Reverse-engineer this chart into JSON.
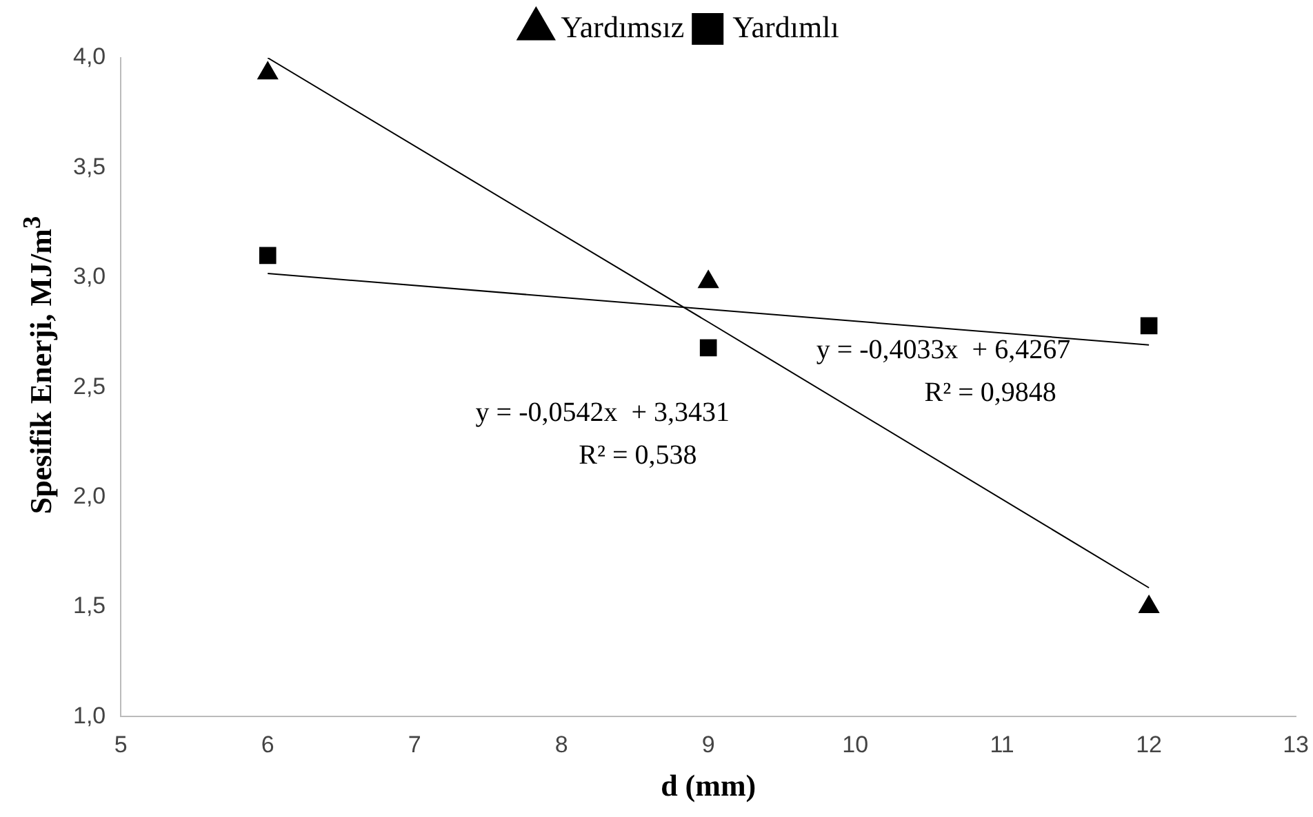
{
  "chart_data": {
    "type": "scatter",
    "xlabel": "d (mm)",
    "ylabel": "Spesifik Enerji,  MJ/m$^{3}$",
    "x": [
      6,
      9,
      12
    ],
    "series": [
      {
        "name": "Yardımsız",
        "color": "#000000",
        "values": [
          3.93,
          2.98,
          1.5
        ],
        "marker": "triangle"
      },
      {
        "name": "Yardımlı",
        "color": "#000000",
        "values": [
          3.1,
          2.68,
          2.78
        ],
        "marker": "square"
      },
      {
        "type": "line",
        "color": "#000000",
        "values": [
          4.0,
          2.797,
          1.587
        ],
        "marker": "none"
      },
      {
        "type": "line",
        "color": "#000000",
        "values": [
          3.018,
          2.855,
          2.693
        ],
        "marker": "none"
      }
    ],
    "annotations": [
      "y = -0,4033x  + 6,4267",
      "R² = 0,9848",
      "y = -0,0542x  + 3,3431",
      "R² = 0,538"
    ],
    "xlim": [
      5,
      13
    ],
    "xticks": [
      5,
      6,
      7,
      8,
      9,
      10,
      11,
      12,
      13
    ],
    "ylim": [
      1,
      4
    ],
    "yticks": [
      {
        "value": 1,
        "label": "1,0"
      },
      {
        "value": 1.5,
        "label": "1,5"
      },
      {
        "value": 2,
        "label": "2,0"
      },
      {
        "value": 2.5,
        "label": "2,5"
      },
      {
        "value": 3,
        "label": "3,0"
      },
      {
        "value": 3.5,
        "label": "3,5"
      },
      {
        "value": 4,
        "label": "4,0"
      }
    ],
    "grid": false,
    "legend": "top"
  }
}
